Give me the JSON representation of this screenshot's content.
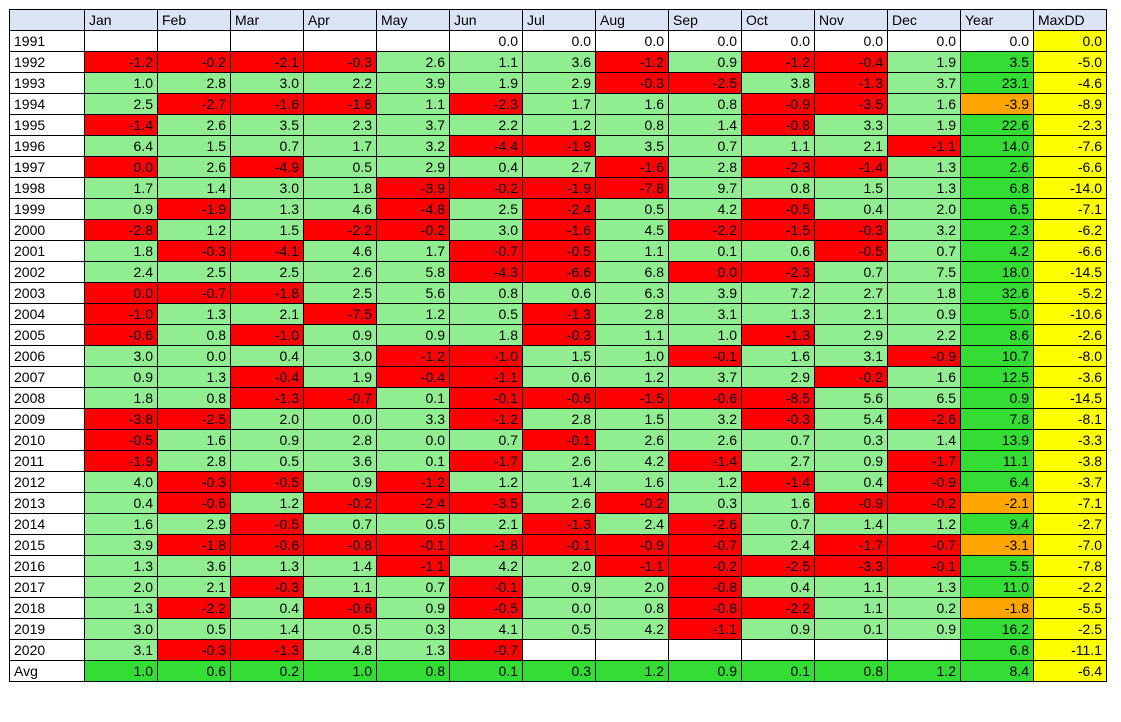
{
  "chart_data": {
    "type": "table",
    "corner": "",
    "columns": [
      "Jan",
      "Feb",
      "Mar",
      "Apr",
      "May",
      "Jun",
      "Jul",
      "Aug",
      "Sep",
      "Oct",
      "Nov",
      "Dec",
      "Year",
      "MaxDD"
    ],
    "colors": {
      "header": "#dbe3f4",
      "positive": "#90ee90",
      "negative": "#ff0000",
      "year_positive": "#33dd33",
      "year_negative": "#ffa500",
      "maxdd": "#ffff00",
      "empty": "#ffffff"
    },
    "rows": [
      {
        "label": "1991",
        "cells": [
          "",
          "",
          "",
          "",
          "",
          "0.0",
          "0.0",
          "0.0",
          "0.0",
          "0.0",
          "0.0",
          "0.0",
          "0.0",
          "0.0"
        ]
      },
      {
        "label": "1992",
        "cells": [
          "-1.2",
          "-0.2",
          "-2.1",
          "-0.3",
          "2.6",
          "1.1",
          "3.6",
          "-1.2",
          "0.9",
          "-1.2",
          "-0.4",
          "1.9",
          "3.5",
          "-5.0"
        ]
      },
      {
        "label": "1993",
        "cells": [
          "1.0",
          "2.8",
          "3.0",
          "2.2",
          "3.9",
          "1.9",
          "2.9",
          "-0.3",
          "-2.5",
          "3.8",
          "-1.3",
          "3.7",
          "23.1",
          "-4.6"
        ]
      },
      {
        "label": "1994",
        "cells": [
          "2.5",
          "-2.7",
          "-1.6",
          "-1.8",
          "1.1",
          "-2.3",
          "1.7",
          "1.6",
          "0.8",
          "-0.9",
          "-3.5",
          "1.6",
          "-3.9",
          "-8.9"
        ]
      },
      {
        "label": "1995",
        "cells": [
          "-1.4",
          "2.6",
          "3.5",
          "2.3",
          "3.7",
          "2.2",
          "1.2",
          "0.8",
          "1.4",
          "-0.8",
          "3.3",
          "1.9",
          "22.6",
          "-2.3"
        ]
      },
      {
        "label": "1996",
        "cells": [
          "6.4",
          "1.5",
          "0.7",
          "1.7",
          "3.2",
          "-4.4",
          "-1.9",
          "3.5",
          "0.7",
          "1.1",
          "2.1",
          "-1.1",
          "14.0",
          "-7.6"
        ]
      },
      {
        "label": "1997",
        "cells": [
          "0.0",
          "2.6",
          "-4.9",
          "0.5",
          "2.9",
          "0.4",
          "2.7",
          "-1.6",
          "2.8",
          "-2.3",
          "-1.4",
          "1.3",
          "2.6",
          "-6.6"
        ]
      },
      {
        "label": "1998",
        "cells": [
          "1.7",
          "1.4",
          "3.0",
          "1.8",
          "-3.9",
          "-0.2",
          "-1.9",
          "-7.8",
          "9.7",
          "0.8",
          "1.5",
          "1.3",
          "6.8",
          "-14.0"
        ]
      },
      {
        "label": "1999",
        "cells": [
          "0.9",
          "-1.9",
          "1.3",
          "4.6",
          "-4.8",
          "2.5",
          "-2.4",
          "0.5",
          "4.2",
          "-0.5",
          "0.4",
          "2.0",
          "6.5",
          "-7.1"
        ]
      },
      {
        "label": "2000",
        "cells": [
          "-2.8",
          "1.2",
          "1.5",
          "-2.2",
          "-0.2",
          "3.0",
          "-1.6",
          "4.5",
          "-2.2",
          "-1.5",
          "-0.3",
          "3.2",
          "2.3",
          "-6.2"
        ]
      },
      {
        "label": "2001",
        "cells": [
          "1.8",
          "-0.3",
          "-4.1",
          "4.6",
          "1.7",
          "-0.7",
          "-0.5",
          "1.1",
          "0.1",
          "0.6",
          "-0.5",
          "0.7",
          "4.2",
          "-6.6"
        ]
      },
      {
        "label": "2002",
        "cells": [
          "2.4",
          "2.5",
          "2.5",
          "2.6",
          "5.8",
          "-4.3",
          "-6.6",
          "6.8",
          "0.0",
          "-2.3",
          "0.7",
          "7.5",
          "18.0",
          "-14.5"
        ]
      },
      {
        "label": "2003",
        "cells": [
          "0.0",
          "-0.7",
          "-1.8",
          "2.5",
          "5.6",
          "0.8",
          "0.6",
          "6.3",
          "3.9",
          "7.2",
          "2.7",
          "1.8",
          "32.6",
          "-5.2"
        ]
      },
      {
        "label": "2004",
        "cells": [
          "-1.0",
          "1.3",
          "2.1",
          "-7.5",
          "1.2",
          "0.5",
          "-1.3",
          "2.8",
          "3.1",
          "1.3",
          "2.1",
          "0.9",
          "5.0",
          "-10.6"
        ]
      },
      {
        "label": "2005",
        "cells": [
          "-0.6",
          "0.8",
          "-1.0",
          "0.9",
          "0.9",
          "1.8",
          "-0.3",
          "1.1",
          "1.0",
          "-1.3",
          "2.9",
          "2.2",
          "8.6",
          "-2.6"
        ]
      },
      {
        "label": "2006",
        "cells": [
          "3.0",
          "0.0",
          "0.4",
          "3.0",
          "-1.2",
          "-1.0",
          "1.5",
          "1.0",
          "-0.1",
          "1.6",
          "3.1",
          "-0.9",
          "10.7",
          "-8.0"
        ]
      },
      {
        "label": "2007",
        "cells": [
          "0.9",
          "1.3",
          "-0.4",
          "1.9",
          "-0.4",
          "-1.1",
          "0.6",
          "1.2",
          "3.7",
          "2.9",
          "-0.2",
          "1.6",
          "12.5",
          "-3.6"
        ]
      },
      {
        "label": "2008",
        "cells": [
          "1.8",
          "0.8",
          "-1.3",
          "-0.7",
          "0.1",
          "-0.1",
          "-0.6",
          "-1.5",
          "-0.6",
          "-8.5",
          "5.6",
          "6.5",
          "0.9",
          "-14.5"
        ]
      },
      {
        "label": "2009",
        "cells": [
          "-3.8",
          "-2.5",
          "2.0",
          "0.0",
          "3.3",
          "-1.2",
          "2.8",
          "1.5",
          "3.2",
          "-0.3",
          "5.4",
          "-2.6",
          "7.8",
          "-8.1"
        ]
      },
      {
        "label": "2010",
        "cells": [
          "-0.5",
          "1.6",
          "0.9",
          "2.8",
          "0.0",
          "0.7",
          "-0.1",
          "2.6",
          "2.6",
          "0.7",
          "0.3",
          "1.4",
          "13.9",
          "-3.3"
        ]
      },
      {
        "label": "2011",
        "cells": [
          "-1.9",
          "2.8",
          "0.5",
          "3.6",
          "0.1",
          "-1.7",
          "2.6",
          "4.2",
          "-1.4",
          "2.7",
          "0.9",
          "-1.7",
          "11.1",
          "-3.8"
        ]
      },
      {
        "label": "2012",
        "cells": [
          "4.0",
          "-0.3",
          "-0.5",
          "0.9",
          "-1.2",
          "1.2",
          "1.4",
          "1.6",
          "1.2",
          "-1.4",
          "0.4",
          "-0.9",
          "6.4",
          "-3.7"
        ]
      },
      {
        "label": "2013",
        "cells": [
          "0.4",
          "-0.6",
          "1.2",
          "-0.2",
          "-2.4",
          "-3.5",
          "2.6",
          "-0.2",
          "0.3",
          "1.6",
          "-0.9",
          "-0.2",
          "-2.1",
          "-7.1"
        ]
      },
      {
        "label": "2014",
        "cells": [
          "1.6",
          "2.9",
          "-0.5",
          "0.7",
          "0.5",
          "2.1",
          "-1.3",
          "2.4",
          "-2.6",
          "0.7",
          "1.4",
          "1.2",
          "9.4",
          "-2.7"
        ]
      },
      {
        "label": "2015",
        "cells": [
          "3.9",
          "-1.8",
          "-0.6",
          "-0.8",
          "-0.1",
          "-1.8",
          "-0.1",
          "-0.9",
          "-0.7",
          "2.4",
          "-1.7",
          "-0.7",
          "-3.1",
          "-7.0"
        ]
      },
      {
        "label": "2016",
        "cells": [
          "1.3",
          "3.6",
          "1.3",
          "1.4",
          "-1.1",
          "4.2",
          "2.0",
          "-1.1",
          "-0.2",
          "-2.5",
          "-3.3",
          "-0.1",
          "5.5",
          "-7.8"
        ]
      },
      {
        "label": "2017",
        "cells": [
          "2.0",
          "2.1",
          "-0.3",
          "1.1",
          "0.7",
          "-0.1",
          "0.9",
          "2.0",
          "-0.8",
          "0.4",
          "1.1",
          "1.3",
          "11.0",
          "-2.2"
        ]
      },
      {
        "label": "2018",
        "cells": [
          "1.3",
          "-2.2",
          "0.4",
          "-0.6",
          "0.9",
          "-0.5",
          "0.0",
          "0.8",
          "-0.8",
          "-2.2",
          "1.1",
          "0.2",
          "-1.8",
          "-5.5"
        ]
      },
      {
        "label": "2019",
        "cells": [
          "3.0",
          "0.5",
          "1.4",
          "0.5",
          "0.3",
          "4.1",
          "0.5",
          "4.2",
          "-1.1",
          "0.9",
          "0.1",
          "0.9",
          "16.2",
          "-2.5"
        ]
      },
      {
        "label": "2020",
        "cells": [
          "3.1",
          "-0.3",
          "-1.3",
          "4.8",
          "1.3",
          "-0.7",
          "",
          "",
          "",
          "",
          "",
          "",
          "6.8",
          "-11.1"
        ]
      },
      {
        "label": "Avg",
        "cells": [
          "1.0",
          "0.6",
          "0.2",
          "1.0",
          "0.8",
          "0.1",
          "0.3",
          "1.2",
          "0.9",
          "0.1",
          "0.8",
          "1.2",
          "8.4",
          "-6.4"
        ]
      }
    ]
  }
}
